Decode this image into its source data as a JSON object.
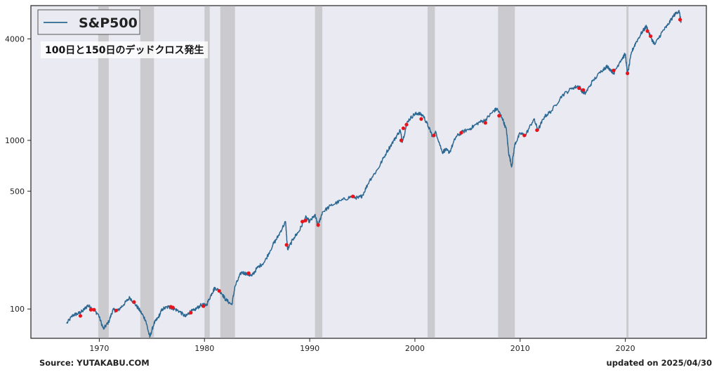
{
  "chart_data": {
    "type": "line",
    "yscale": "log",
    "series": [
      {
        "name": "S&P500",
        "color": "#2b6791"
      }
    ],
    "legend": {
      "label": "S&P500",
      "placement": "top-left"
    },
    "annotation": "100日と150日のデッドクロス発生",
    "x_range": [
      1963.5,
      2027.7
    ],
    "ylim": [
      67,
      6300
    ],
    "x_ticks": [
      1970,
      1980,
      1990,
      2000,
      2010,
      2020
    ],
    "y_ticks": [
      100,
      500,
      1000,
      4000
    ],
    "recessions": [
      [
        1969.9,
        1970.9
      ],
      [
        1973.9,
        1975.2
      ],
      [
        1980.0,
        1980.5
      ],
      [
        1981.5,
        1982.9
      ],
      [
        1990.5,
        1991.2
      ],
      [
        2001.2,
        2001.9
      ],
      [
        2007.9,
        2009.5
      ],
      [
        2020.1,
        2020.3
      ]
    ],
    "points": [
      [
        1966.9,
        82
      ],
      [
        1967.5,
        92
      ],
      [
        1968.0,
        94
      ],
      [
        1968.4,
        97
      ],
      [
        1968.9,
        105
      ],
      [
        1969.3,
        101
      ],
      [
        1969.9,
        93
      ],
      [
        1970.4,
        76
      ],
      [
        1970.9,
        84
      ],
      [
        1971.3,
        99
      ],
      [
        1971.7,
        97
      ],
      [
        1972.3,
        106
      ],
      [
        1972.9,
        117
      ],
      [
        1973.5,
        105
      ],
      [
        1973.9,
        97
      ],
      [
        1974.4,
        86
      ],
      [
        1974.8,
        68
      ],
      [
        1975.2,
        82
      ],
      [
        1975.6,
        89
      ],
      [
        1976.0,
        100
      ],
      [
        1976.6,
        103
      ],
      [
        1977.0,
        101
      ],
      [
        1977.6,
        97
      ],
      [
        1978.2,
        90
      ],
      [
        1978.6,
        96
      ],
      [
        1979.0,
        98
      ],
      [
        1979.6,
        105
      ],
      [
        1980.2,
        106
      ],
      [
        1980.7,
        124
      ],
      [
        1981.0,
        134
      ],
      [
        1981.6,
        125
      ],
      [
        1982.0,
        114
      ],
      [
        1982.6,
        106
      ],
      [
        1982.9,
        136
      ],
      [
        1983.5,
        165
      ],
      [
        1984.0,
        162
      ],
      [
        1984.5,
        157
      ],
      [
        1985.0,
        175
      ],
      [
        1985.7,
        190
      ],
      [
        1986.5,
        240
      ],
      [
        1987.0,
        270
      ],
      [
        1987.7,
        330
      ],
      [
        1987.9,
        225
      ],
      [
        1988.5,
        265
      ],
      [
        1989.0,
        290
      ],
      [
        1989.6,
        350
      ],
      [
        1990.0,
        330
      ],
      [
        1990.5,
        360
      ],
      [
        1990.8,
        310
      ],
      [
        1991.2,
        375
      ],
      [
        1992.0,
        410
      ],
      [
        1993.0,
        440
      ],
      [
        1994.0,
        465
      ],
      [
        1994.6,
        455
      ],
      [
        1995.0,
        470
      ],
      [
        1995.7,
        580
      ],
      [
        1996.5,
        680
      ],
      [
        1997.3,
        850
      ],
      [
        1998.0,
        1000
      ],
      [
        1998.6,
        1150
      ],
      [
        1998.8,
        980
      ],
      [
        1999.3,
        1300
      ],
      [
        1999.9,
        1420
      ],
      [
        2000.3,
        1450
      ],
      [
        2000.8,
        1400
      ],
      [
        2001.3,
        1200
      ],
      [
        2001.7,
        1050
      ],
      [
        2002.0,
        1120
      ],
      [
        2002.6,
        850
      ],
      [
        2002.9,
        880
      ],
      [
        2003.3,
        850
      ],
      [
        2003.9,
        1050
      ],
      [
        2004.5,
        1120
      ],
      [
        2005.3,
        1180
      ],
      [
        2006.1,
        1280
      ],
      [
        2006.7,
        1320
      ],
      [
        2007.4,
        1480
      ],
      [
        2007.8,
        1540
      ],
      [
        2008.3,
        1360
      ],
      [
        2008.7,
        1150
      ],
      [
        2008.9,
        850
      ],
      [
        2009.2,
        700
      ],
      [
        2009.5,
        950
      ],
      [
        2010.0,
        1100
      ],
      [
        2010.5,
        1070
      ],
      [
        2011.3,
        1340
      ],
      [
        2011.7,
        1150
      ],
      [
        2012.3,
        1380
      ],
      [
        2013.0,
        1500
      ],
      [
        2014.0,
        1850
      ],
      [
        2015.0,
        2050
      ],
      [
        2015.6,
        2100
      ],
      [
        2015.9,
        1950
      ],
      [
        2016.2,
        1900
      ],
      [
        2016.9,
        2250
      ],
      [
        2017.9,
        2650
      ],
      [
        2018.3,
        2750
      ],
      [
        2018.9,
        2500
      ],
      [
        2019.5,
        2950
      ],
      [
        2020.0,
        3250
      ],
      [
        2020.2,
        2450
      ],
      [
        2020.6,
        3350
      ],
      [
        2021.0,
        3800
      ],
      [
        2021.6,
        4400
      ],
      [
        2022.0,
        4750
      ],
      [
        2022.4,
        4100
      ],
      [
        2022.8,
        3700
      ],
      [
        2023.5,
        4400
      ],
      [
        2024.0,
        4800
      ],
      [
        2024.6,
        5500
      ],
      [
        2025.1,
        5900
      ],
      [
        2025.3,
        5000
      ]
    ],
    "dead_cross_markers": [
      [
        1968.2,
        91
      ],
      [
        1969.2,
        99
      ],
      [
        1969.5,
        99
      ],
      [
        1971.6,
        98
      ],
      [
        1973.3,
        110
      ],
      [
        1976.8,
        103
      ],
      [
        1977.0,
        102
      ],
      [
        1978.7,
        95
      ],
      [
        1979.9,
        104
      ],
      [
        1981.4,
        128
      ],
      [
        1984.2,
        163
      ],
      [
        1987.8,
        240
      ],
      [
        1989.3,
        330
      ],
      [
        1989.6,
        335
      ],
      [
        1990.8,
        315
      ],
      [
        1994.1,
        465
      ],
      [
        1998.7,
        1000
      ],
      [
        1998.9,
        1180
      ],
      [
        1999.2,
        1240
      ],
      [
        2000.6,
        1340
      ],
      [
        2001.8,
        1070
      ],
      [
        2004.4,
        1110
      ],
      [
        2006.7,
        1270
      ],
      [
        2008.0,
        1400
      ],
      [
        2010.4,
        1070
      ],
      [
        2011.6,
        1150
      ],
      [
        2015.6,
        2040
      ],
      [
        2016.0,
        1990
      ],
      [
        2018.9,
        2600
      ],
      [
        2020.2,
        2500
      ],
      [
        2022.1,
        4450
      ],
      [
        2022.4,
        4150
      ],
      [
        2025.2,
        5200
      ]
    ]
  },
  "footer": {
    "source": "Source: YUTAKABU.COM",
    "updated": "updated on 2025/04/30"
  }
}
